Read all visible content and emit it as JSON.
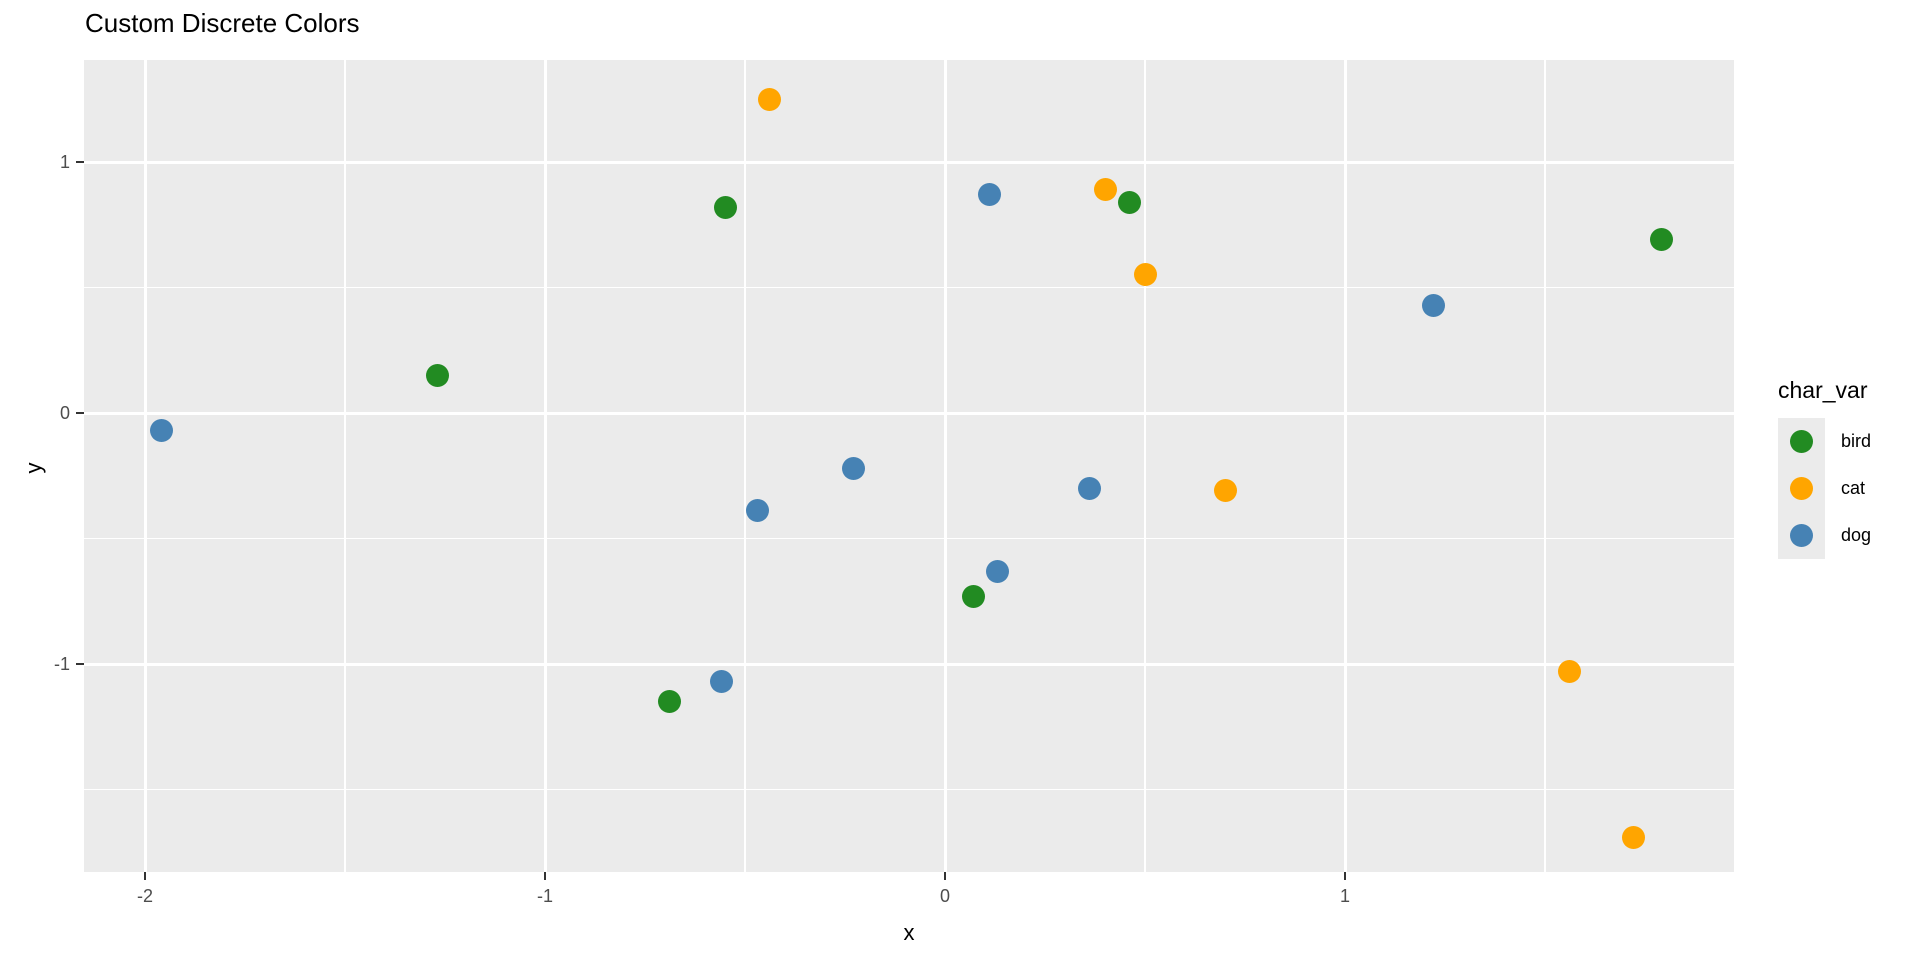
{
  "chart_data": {
    "type": "scatter",
    "title": "Custom Discrete Colors",
    "xlabel": "x",
    "ylabel": "y",
    "x_ticks": [
      -2,
      -1,
      0,
      1
    ],
    "x_minor_ticks": [
      -1.5,
      -0.5,
      0.5,
      1.5
    ],
    "y_ticks": [
      1,
      0,
      -1
    ],
    "y_minor_ticks": [
      0.5,
      -0.5,
      -1.5
    ],
    "xlim": [
      -2.15,
      1.97
    ],
    "ylim": [
      -1.83,
      1.41
    ],
    "grid": "major-and-minor-white-on-grey",
    "legend": {
      "title": "char_var",
      "position": "right",
      "entries": [
        "bird",
        "cat",
        "dog"
      ]
    },
    "panel_bg": "#EBEBEB",
    "gridline_color": "#FFFFFF",
    "tick_label_color": "#4D4D4D",
    "series": [
      {
        "name": "bird",
        "color": "#228B22",
        "points": [
          [
            -1.27,
            0.15
          ],
          [
            -0.55,
            0.82
          ],
          [
            0.46,
            0.84
          ],
          [
            1.79,
            0.69
          ],
          [
            -0.69,
            -1.15
          ],
          [
            0.07,
            -0.73
          ]
        ]
      },
      {
        "name": "cat",
        "color": "#FFA500",
        "points": [
          [
            -0.44,
            1.25
          ],
          [
            0.4,
            0.89
          ],
          [
            0.5,
            0.55
          ],
          [
            0.7,
            -0.31
          ],
          [
            1.56,
            -1.03
          ],
          [
            1.72,
            -1.69
          ]
        ]
      },
      {
        "name": "dog",
        "color": "#4682B4",
        "points": [
          [
            -1.96,
            -0.07
          ],
          [
            0.11,
            0.87
          ],
          [
            1.22,
            0.43
          ],
          [
            -0.23,
            -0.22
          ],
          [
            -0.47,
            -0.39
          ],
          [
            -0.56,
            -1.07
          ],
          [
            0.36,
            -0.3
          ],
          [
            0.13,
            -0.63
          ]
        ]
      }
    ]
  }
}
